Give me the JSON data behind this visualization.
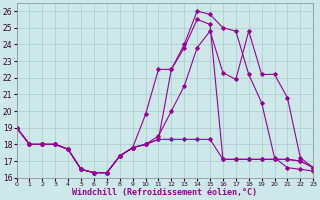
{
  "background_color": "#cce8e8",
  "grid_color": "#aacccc",
  "line_color": "#990099",
  "xlim": [
    0,
    23
  ],
  "ylim": [
    16,
    26.5
  ],
  "xlabel": "Windchill (Refroidissement éolien,°C)",
  "xlabel_fontsize": 6,
  "xticks": [
    0,
    1,
    2,
    3,
    4,
    5,
    6,
    7,
    8,
    9,
    10,
    11,
    12,
    13,
    14,
    15,
    16,
    17,
    18,
    19,
    20,
    21,
    22,
    23
  ],
  "yticks": [
    16,
    17,
    18,
    19,
    20,
    21,
    22,
    23,
    24,
    25,
    26
  ],
  "tick_fontsize": 5.5,
  "series1_x": [
    0,
    1,
    2,
    3,
    4,
    5,
    6,
    7,
    8,
    9,
    10,
    11,
    12,
    13,
    14,
    15,
    16,
    17,
    18,
    19,
    20,
    21,
    22,
    23
  ],
  "series1_y": [
    19,
    18,
    18,
    18,
    17.7,
    16.5,
    16.3,
    16.3,
    17.3,
    17.8,
    18.0,
    18.3,
    22.5,
    23.8,
    25.5,
    25.2,
    17.1,
    17.1,
    17.1,
    17.1,
    17.1,
    17.1,
    17.0,
    16.6
  ],
  "series2_x": [
    0,
    1,
    2,
    3,
    4,
    5,
    6,
    7,
    8,
    9,
    10,
    11,
    12,
    13,
    14,
    15,
    16,
    17,
    18,
    19,
    20,
    21,
    22,
    23
  ],
  "series2_y": [
    19,
    18,
    18,
    18,
    17.7,
    16.5,
    16.3,
    16.3,
    17.3,
    17.8,
    19.8,
    22.5,
    22.5,
    24.0,
    26.0,
    25.8,
    25.0,
    24.8,
    22.2,
    20.5,
    17.2,
    16.6,
    16.5,
    16.4
  ],
  "series3_x": [
    0,
    1,
    2,
    3,
    4,
    5,
    6,
    7,
    8,
    9,
    10,
    11,
    12,
    13,
    14,
    15,
    16,
    17,
    18,
    19,
    20,
    21,
    22,
    23
  ],
  "series3_y": [
    19,
    18,
    18,
    18,
    17.7,
    16.5,
    16.3,
    16.3,
    17.3,
    17.8,
    18.0,
    18.5,
    20.0,
    21.5,
    23.8,
    24.8,
    22.3,
    21.9,
    24.8,
    22.2,
    22.2,
    20.8,
    17.2,
    16.6
  ],
  "series4_x": [
    0,
    1,
    2,
    3,
    4,
    5,
    6,
    7,
    8,
    9,
    10,
    11,
    12,
    13,
    14,
    15,
    16,
    17,
    18,
    19,
    20,
    21,
    22,
    23
  ],
  "series4_y": [
    19,
    18,
    18,
    18,
    17.7,
    16.5,
    16.3,
    16.3,
    17.3,
    17.8,
    18.0,
    18.3,
    18.3,
    18.3,
    18.3,
    18.3,
    17.1,
    17.1,
    17.1,
    17.1,
    17.1,
    17.1,
    17.0,
    16.6
  ]
}
